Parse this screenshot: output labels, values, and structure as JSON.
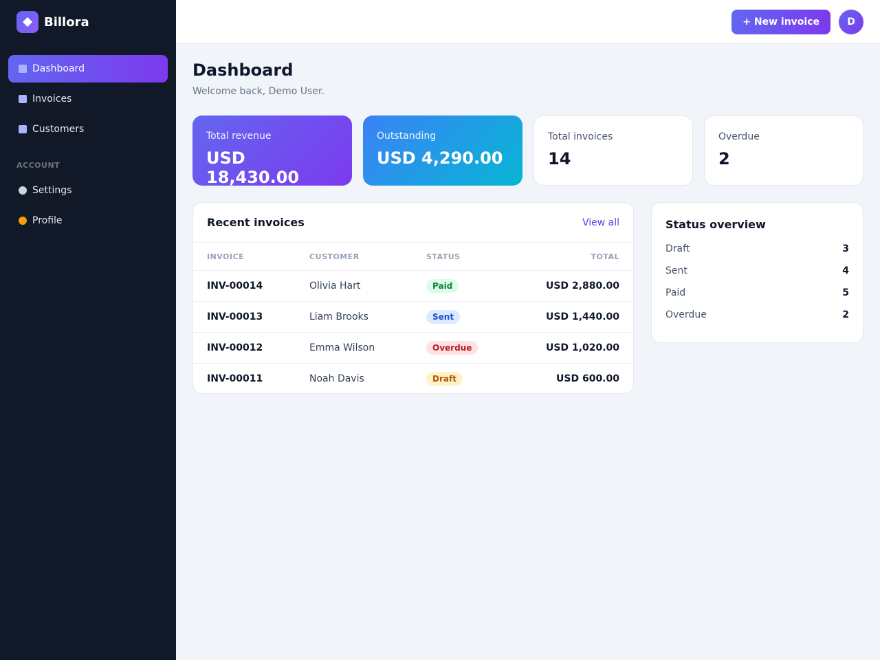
{
  "sidebar": {
    "brand": "Billora",
    "nav": [
      "Dashboard",
      "Invoices",
      "Customers"
    ],
    "section": "ACCOUNT",
    "account_nav": [
      "Settings",
      "Profile"
    ]
  },
  "topbar": {
    "button": "+ New invoice",
    "avatar": "D"
  },
  "header": {
    "title": "Dashboard",
    "subtitle": "Welcome back, Demo User."
  },
  "stats": [
    {
      "label": "Total revenue",
      "value": "USD 18,430.00"
    },
    {
      "label": "Outstanding",
      "value": "USD 4,290.00"
    },
    {
      "label": "Total invoices",
      "value": 14
    },
    {
      "label": "Overdue",
      "value": 2
    }
  ],
  "recent": {
    "title": "Recent invoices",
    "link": "View all",
    "columns": [
      "INVOICE",
      "CUSTOMER",
      "STATUS",
      "TOTAL"
    ],
    "rows": [
      [
        "INV-00014",
        "Olivia Hart",
        "Paid",
        "USD 2,880.00"
      ],
      [
        "INV-00013",
        "Liam Brooks",
        "Sent",
        "USD 1,440.00"
      ],
      [
        "INV-00012",
        "Emma Wilson",
        "Overdue",
        "USD 1,020.00"
      ],
      [
        "INV-00011",
        "Noah Davis",
        "Draft",
        "USD 600.00"
      ]
    ]
  },
  "status_overview": {
    "title": "Status overview",
    "rows": [
      {
        "label": "Draft",
        "count": 3
      },
      {
        "label": "Sent",
        "count": 4
      },
      {
        "label": "Paid",
        "count": 5
      },
      {
        "label": "Overdue",
        "count": 2
      }
    ]
  }
}
